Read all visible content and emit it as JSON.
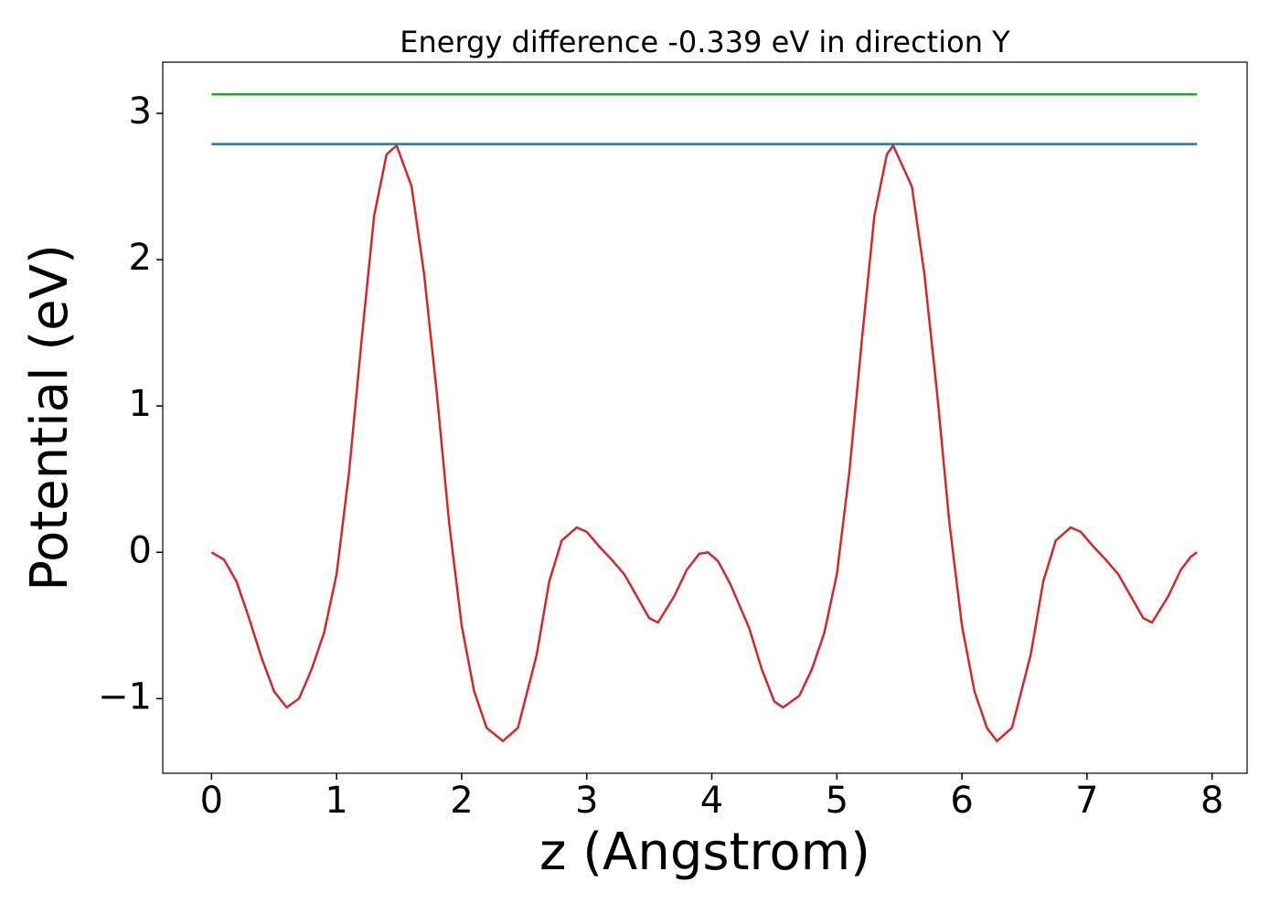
{
  "chart_data": {
    "type": "line",
    "title": "Energy difference -0.339 eV in direction Y",
    "x_label": "z (Angstrom)",
    "y_label": "Potential (eV)",
    "xlim": [
      -0.39,
      8.28
    ],
    "ylim": [
      -1.51,
      3.35
    ],
    "xticks": [
      0,
      1,
      2,
      3,
      4,
      5,
      6,
      7,
      8
    ],
    "yticks": [
      {
        "value": -1,
        "label": "−1"
      },
      0,
      1,
      2,
      3
    ],
    "series": [
      {
        "color": "#d62728",
        "x": [
          0,
          0.1,
          0.2,
          0.3,
          0.4,
          0.5,
          0.6,
          0.7,
          0.8,
          0.9,
          1.0,
          1.1,
          1.2,
          1.3,
          1.4,
          1.48,
          1.6,
          1.7,
          1.8,
          1.9,
          2.0,
          2.1,
          2.2,
          2.33,
          2.45,
          2.6,
          2.7,
          2.8,
          2.92,
          3.0,
          3.1,
          3.2,
          3.3,
          3.4,
          3.5,
          3.57,
          3.7,
          3.8,
          3.9,
          3.97,
          4.05,
          4.15,
          4.3,
          4.4,
          4.5,
          4.57,
          4.7,
          4.8,
          4.9,
          5.0,
          5.1,
          5.2,
          5.3,
          5.4,
          5.45,
          5.6,
          5.7,
          5.8,
          5.9,
          6.0,
          6.1,
          6.2,
          6.28,
          6.4,
          6.55,
          6.65,
          6.75,
          6.87,
          6.95,
          7.05,
          7.15,
          7.25,
          7.35,
          7.45,
          7.52,
          7.65,
          7.75,
          7.83,
          7.88
        ],
        "values": [
          0,
          -0.05,
          -0.2,
          -0.45,
          -0.72,
          -0.95,
          -1.06,
          -1.0,
          -0.8,
          -0.55,
          -0.15,
          0.55,
          1.45,
          2.3,
          2.72,
          2.78,
          2.5,
          1.9,
          1.1,
          0.2,
          -0.5,
          -0.95,
          -1.2,
          -1.29,
          -1.2,
          -0.7,
          -0.2,
          0.08,
          0.17,
          0.14,
          0.04,
          -0.05,
          -0.15,
          -0.3,
          -0.45,
          -0.48,
          -0.3,
          -0.12,
          -0.01,
          0,
          -0.06,
          -0.22,
          -0.52,
          -0.8,
          -1.02,
          -1.06,
          -0.98,
          -0.8,
          -0.55,
          -0.15,
          0.55,
          1.45,
          2.3,
          2.72,
          2.78,
          2.5,
          1.9,
          1.1,
          0.2,
          -0.5,
          -0.95,
          -1.2,
          -1.29,
          -1.2,
          -0.7,
          -0.2,
          0.08,
          0.17,
          0.14,
          0.04,
          -0.05,
          -0.15,
          -0.3,
          -0.45,
          -0.48,
          -0.3,
          -0.12,
          -0.03,
          0
        ]
      },
      {
        "color": "#2ca02c",
        "x": [
          0,
          7.88
        ],
        "values": [
          3.13,
          3.13
        ]
      },
      {
        "color": "#1f77b4",
        "x": [
          0,
          7.88
        ],
        "values": [
          2.79,
          2.79
        ]
      }
    ]
  }
}
